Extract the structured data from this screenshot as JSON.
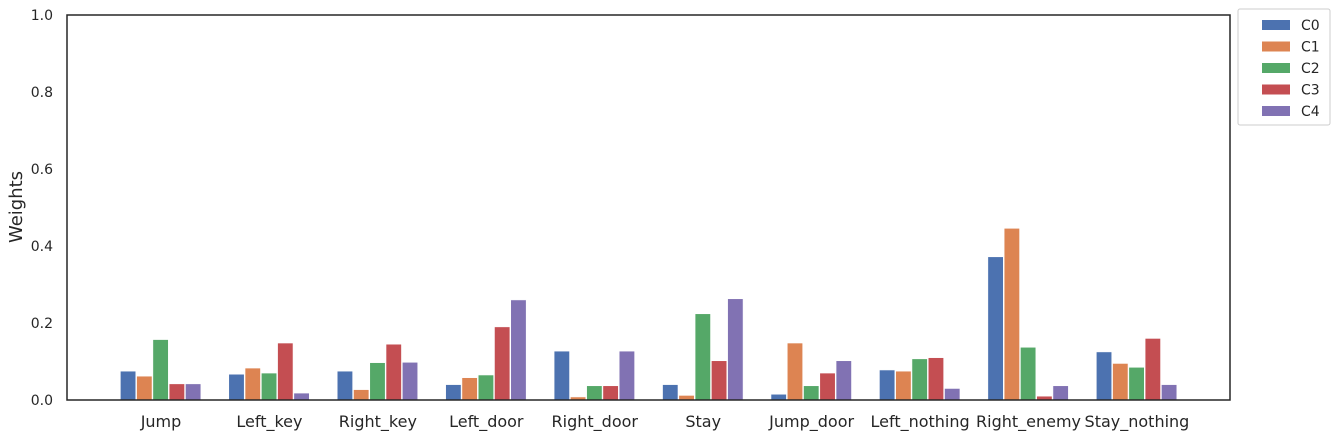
{
  "chart_data": {
    "type": "bar",
    "title": "",
    "xlabel": "",
    "ylabel": "Weights",
    "ylim": [
      0,
      1.0
    ],
    "yticks": [
      "0.0",
      "0.2",
      "0.4",
      "0.6",
      "0.8",
      "1.0"
    ],
    "grid": false,
    "legend_position": "outside-top-right",
    "categories": [
      "Jump",
      "Left_key",
      "Right_key",
      "Left_door",
      "Right_door",
      "Stay",
      "Jump_door",
      "Left_nothing",
      "Right_enemy",
      "Stay_nothing"
    ],
    "series": [
      {
        "name": "C0",
        "color": "#4c72b0",
        "values": [
          0.075,
          0.067,
          0.075,
          0.04,
          0.127,
          0.04,
          0.015,
          0.078,
          0.372,
          0.125
        ]
      },
      {
        "name": "C1",
        "color": "#dd8452",
        "values": [
          0.062,
          0.083,
          0.027,
          0.058,
          0.008,
          0.012,
          0.148,
          0.075,
          0.446,
          0.095
        ]
      },
      {
        "name": "C2",
        "color": "#55a868",
        "values": [
          0.157,
          0.07,
          0.097,
          0.065,
          0.037,
          0.224,
          0.037,
          0.107,
          0.137,
          0.085
        ]
      },
      {
        "name": "C3",
        "color": "#c44e52",
        "values": [
          0.042,
          0.148,
          0.145,
          0.19,
          0.037,
          0.102,
          0.07,
          0.11,
          0.01,
          0.16
        ]
      },
      {
        "name": "C4",
        "color": "#8172b3",
        "values": [
          0.042,
          0.018,
          0.098,
          0.26,
          0.127,
          0.263,
          0.102,
          0.03,
          0.037,
          0.04
        ]
      }
    ]
  }
}
